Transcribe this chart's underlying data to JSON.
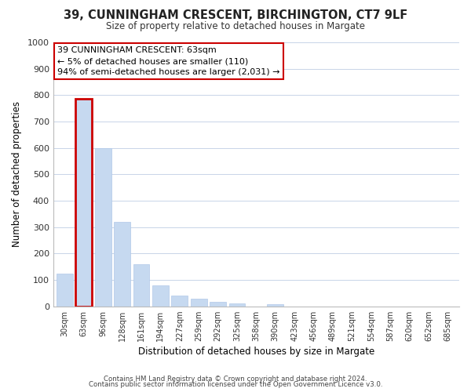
{
  "title": "39, CUNNINGHAM CRESCENT, BIRCHINGTON, CT7 9LF",
  "subtitle": "Size of property relative to detached houses in Margate",
  "xlabel": "Distribution of detached houses by size in Margate",
  "ylabel": "Number of detached properties",
  "bar_labels": [
    "30sqm",
    "63sqm",
    "96sqm",
    "128sqm",
    "161sqm",
    "194sqm",
    "227sqm",
    "259sqm",
    "292sqm",
    "325sqm",
    "358sqm",
    "390sqm",
    "423sqm",
    "456sqm",
    "489sqm",
    "521sqm",
    "554sqm",
    "587sqm",
    "620sqm",
    "652sqm",
    "685sqm"
  ],
  "bar_values": [
    125,
    785,
    600,
    320,
    160,
    78,
    42,
    30,
    18,
    10,
    0,
    8,
    0,
    0,
    0,
    0,
    0,
    0,
    0,
    0,
    0
  ],
  "bar_color": "#c6d9f0",
  "bar_edgecolor": "#b0c8e8",
  "highlight_bar_index": 1,
  "highlight_outline_color": "#cc0000",
  "annotation_line1": "39 CUNNINGHAM CRESCENT: 63sqm",
  "annotation_line2": "← 5% of detached houses are smaller (110)",
  "annotation_line3": "94% of semi-detached houses are larger (2,031) →",
  "annotation_box_color": "#ffffff",
  "annotation_box_edgecolor": "#cc0000",
  "ylim": [
    0,
    1000
  ],
  "yticks": [
    0,
    100,
    200,
    300,
    400,
    500,
    600,
    700,
    800,
    900,
    1000
  ],
  "footer_line1": "Contains HM Land Registry data © Crown copyright and database right 2024.",
  "footer_line2": "Contains public sector information licensed under the Open Government Licence v3.0.",
  "background_color": "#ffffff",
  "grid_color": "#c8d4e8"
}
